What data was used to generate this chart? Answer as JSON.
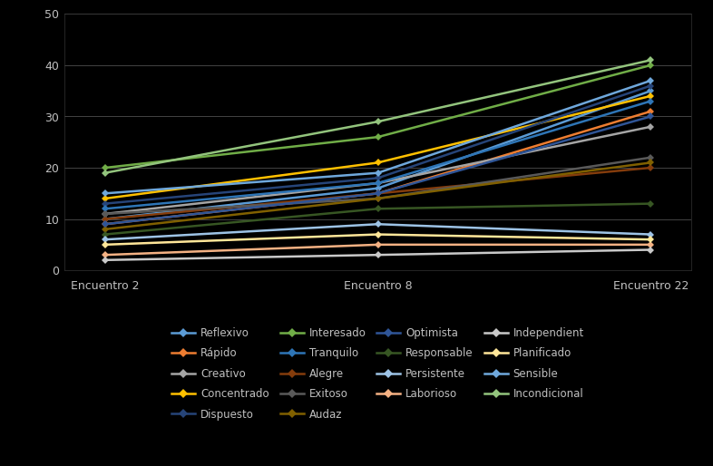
{
  "x_labels": [
    "Encuentro 2",
    "Encuentro 8",
    "Encuentro 22"
  ],
  "x_values": [
    0,
    1,
    2
  ],
  "series": [
    {
      "name": "Reflexivo",
      "values": [
        10,
        16,
        35
      ],
      "color": "#5B9BD5"
    },
    {
      "name": "Rápido",
      "values": [
        9,
        15,
        31
      ],
      "color": "#ED7D31"
    },
    {
      "name": "Creativo",
      "values": [
        11,
        17,
        28
      ],
      "color": "#A5A5A5"
    },
    {
      "name": "Concentrado",
      "values": [
        14,
        21,
        34
      ],
      "color": "#FFC000"
    },
    {
      "name": "Dispuesto",
      "values": [
        13,
        18,
        36
      ],
      "color": "#264478"
    },
    {
      "name": "Interesado",
      "values": [
        20,
        26,
        40
      ],
      "color": "#70AD47"
    },
    {
      "name": "Tranquilo",
      "values": [
        12,
        17,
        33
      ],
      "color": "#2E75B6"
    },
    {
      "name": "Alegre",
      "values": [
        10,
        15,
        20
      ],
      "color": "#843C0C"
    },
    {
      "name": "Exitoso",
      "values": [
        11,
        14,
        22
      ],
      "color": "#595959"
    },
    {
      "name": "Audaz",
      "values": [
        8,
        14,
        21
      ],
      "color": "#806000"
    },
    {
      "name": "Optimista",
      "values": [
        9,
        15,
        30
      ],
      "color": "#2F5597"
    },
    {
      "name": "Responsable",
      "values": [
        7,
        12,
        13
      ],
      "color": "#375623"
    },
    {
      "name": "Persistente",
      "values": [
        6,
        9,
        7
      ],
      "color": "#9DC3E6"
    },
    {
      "name": "Laborioso",
      "values": [
        3,
        5,
        5
      ],
      "color": "#F4B183"
    },
    {
      "name": "Independient",
      "values": [
        2,
        3,
        4
      ],
      "color": "#C9C9C9"
    },
    {
      "name": "Planificado",
      "values": [
        5,
        7,
        6
      ],
      "color": "#FFE699"
    },
    {
      "name": "Sensible",
      "values": [
        15,
        19,
        37
      ],
      "color": "#6FA8DC"
    },
    {
      "name": "Incondicional",
      "values": [
        19,
        29,
        41
      ],
      "color": "#93C47D"
    }
  ],
  "ylim": [
    0,
    50
  ],
  "yticks": [
    0,
    10,
    20,
    30,
    40,
    50
  ],
  "background_color": "#000000",
  "plot_bg_color": "#000000",
  "grid_color": "#444444",
  "text_color": "#C0C0C0",
  "legend_ncol": 4,
  "legend_fontsize": 8.5
}
